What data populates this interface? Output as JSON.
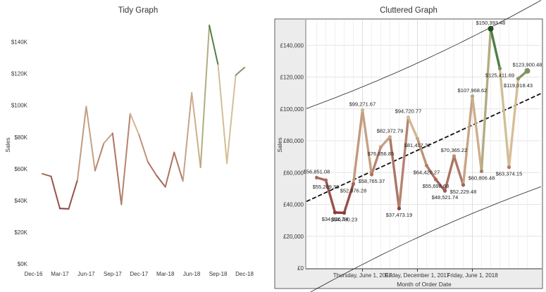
{
  "charts": [
    {
      "title": "Tidy Graph",
      "ylabel": "Sales",
      "xlabel": "",
      "y_ticks": [
        "$0K",
        "$20K",
        "$40K",
        "$60K",
        "$80K",
        "$100K",
        "$120K",
        "$140K"
      ],
      "x_ticks": [
        "Dec-16",
        "Mar-17",
        "Jun-17",
        "Sep-17",
        "Dec-17",
        "Mar-18",
        "Jun-18",
        "Sep-18",
        "Dec-18"
      ]
    },
    {
      "title": "Cluttered Graph",
      "ylabel": "Sales",
      "xlabel": "Month of Order Date",
      "y_ticks": [
        "£0",
        "£20,000",
        "£40,000",
        "£60,000",
        "£80,000",
        "£100,000",
        "£120,000",
        "£140,000"
      ],
      "x_ticks": [
        "Thursday, June 1, 2017",
        "Friday, December 1, 2017",
        "Friday, June 1, 2018"
      ]
    }
  ],
  "chart_data": [
    {
      "type": "line",
      "title": "Tidy Graph",
      "xlabel": "",
      "ylabel": "Sales",
      "ylim": [
        0,
        150000
      ],
      "grid": false,
      "x": [
        "2017-01",
        "2017-02",
        "2017-03",
        "2017-04",
        "2017-05",
        "2017-06",
        "2017-07",
        "2017-08",
        "2017-09",
        "2017-10",
        "2017-11",
        "2017-12",
        "2018-01",
        "2018-02",
        "2018-03",
        "2018-04",
        "2018-05",
        "2018-06",
        "2018-07",
        "2018-08",
        "2018-09",
        "2018-10",
        "2018-11",
        "2018-12"
      ],
      "values": [
        56851.08,
        55209.36,
        34926.34,
        34700.23,
        52876.28,
        99271.67,
        58765.37,
        76056.85,
        82372.79,
        37473.19,
        94720.77,
        81417.32,
        64420.27,
        55698.68,
        48521.74,
        70365.22,
        52229.48,
        107968.62,
        60806.48,
        150393.48,
        125411.69,
        63374.15,
        119018.43,
        123900.48
      ]
    },
    {
      "type": "line",
      "title": "Cluttered Graph",
      "xlabel": "Month of Order Date",
      "ylabel": "Sales",
      "ylim": [
        0,
        155000
      ],
      "grid": true,
      "trend_line": true,
      "x": [
        "2017-01",
        "2017-02",
        "2017-03",
        "2017-04",
        "2017-05",
        "2017-06",
        "2017-07",
        "2017-08",
        "2017-09",
        "2017-10",
        "2017-11",
        "2017-12",
        "2018-01",
        "2018-02",
        "2018-03",
        "2018-04",
        "2018-05",
        "2018-06",
        "2018-07",
        "2018-08",
        "2018-09",
        "2018-10",
        "2018-11",
        "2018-12"
      ],
      "values": [
        56851.08,
        55209.36,
        34926.34,
        34700.23,
        52876.28,
        99271.67,
        58765.37,
        76056.85,
        82372.79,
        37473.19,
        94720.77,
        81417.32,
        64420.27,
        55698.68,
        48521.74,
        70365.22,
        52229.48,
        107968.62,
        60806.48,
        150393.48,
        125411.69,
        63374.15,
        119018.43,
        123900.48
      ],
      "data_labels": [
        "$56,851.08",
        "$55,209.36",
        "$34,926.34",
        "$34,700.23",
        "$52,876.28",
        "$99,271.67",
        "$58,765.37",
        "$76,056.85",
        "$82,372.79",
        "$37,473.19",
        "$94,720.77",
        "$81,417.32",
        "$64,420.27",
        "$55,698.68",
        "$48,521.74",
        "$70,365.22",
        "$52,229.48",
        "$107,968.62",
        "$60,806.48",
        "$150,393.48",
        "$125,411.69",
        "$63,374.15",
        "$119,018.43",
        "$123,900.48"
      ]
    }
  ],
  "colors": {
    "low": "#8b3a3a",
    "mid": "#d8c19a",
    "high": "#2e6b30"
  }
}
